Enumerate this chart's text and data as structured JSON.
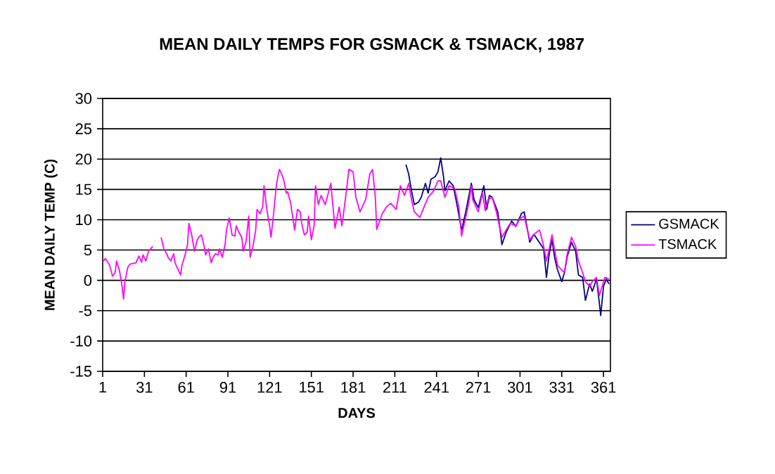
{
  "chart_data": {
    "type": "line",
    "title": "MEAN DAILY TEMPS FOR GSMACK & TSMACK, 1987",
    "xlabel": "DAYS",
    "ylabel": "MEAN DAILY TEMP (C)",
    "xlim": [
      1,
      366
    ],
    "xticks": [
      1,
      31,
      61,
      91,
      121,
      151,
      181,
      211,
      241,
      271,
      301,
      331,
      361
    ],
    "ylim": [
      -15,
      30
    ],
    "yticks": [
      -15,
      -10,
      -5,
      0,
      5,
      10,
      15,
      20,
      25,
      30
    ],
    "grid": "y",
    "legend": "right",
    "marker": "none",
    "line_style": "solid",
    "series": [
      {
        "name": "GSMACK",
        "color": "#000080",
        "x": [
          219,
          221,
          223,
          225,
          228,
          230,
          233,
          235,
          237,
          240,
          242,
          244,
          246,
          247,
          250,
          253,
          256,
          259,
          262,
          266,
          268,
          271,
          275,
          277,
          279,
          281,
          285,
          288,
          291,
          295,
          298,
          302,
          304,
          308,
          311,
          318,
          320,
          322,
          324,
          326,
          328,
          331,
          333,
          335,
          338,
          341,
          343,
          346,
          348,
          351,
          353,
          356,
          358,
          359,
          361,
          363,
          365
        ],
        "values": [
          19.1,
          17.5,
          14.8,
          12.5,
          12.9,
          13.7,
          16.0,
          14.4,
          16.7,
          17.1,
          17.9,
          20.2,
          17.1,
          14.8,
          16.4,
          15.6,
          12.1,
          8.3,
          11.3,
          16.0,
          13.3,
          12.0,
          15.6,
          11.7,
          14.0,
          13.7,
          11.3,
          5.9,
          7.9,
          9.8,
          8.9,
          11.0,
          11.3,
          6.3,
          7.6,
          5.2,
          0.5,
          4.4,
          6.7,
          3.6,
          1.7,
          -0.2,
          1.3,
          4.0,
          6.3,
          4.8,
          0.9,
          0.5,
          -3.3,
          -0.6,
          -1.8,
          0.2,
          -3.7,
          -5.8,
          -1.0,
          0.2,
          -0.6
        ]
      },
      {
        "name": "TSMACK",
        "color": "#ff00ff",
        "x": [
          1,
          3,
          6,
          8,
          10,
          11,
          13,
          15,
          16,
          17,
          19,
          20,
          21,
          25,
          27,
          29,
          30,
          32,
          34,
          37,
          40,
          43,
          45,
          47,
          48,
          50,
          52,
          53,
          55,
          57,
          58,
          60,
          62,
          63,
          65,
          67,
          69,
          70,
          72,
          74,
          75,
          77,
          79,
          80,
          82,
          84,
          85,
          87,
          89,
          90,
          92,
          94,
          96,
          97,
          99,
          101,
          102,
          104,
          106,
          107,
          109,
          111,
          112,
          114,
          116,
          117,
          119,
          121,
          122,
          124,
          126,
          128,
          129,
          131,
          133,
          134,
          136,
          138,
          139,
          141,
          143,
          144,
          146,
          148,
          149,
          151,
          153,
          154,
          156,
          158,
          161,
          165,
          168,
          171,
          173,
          176,
          178,
          181,
          183,
          186,
          190,
          193,
          195,
          197,
          198,
          202,
          205,
          208,
          212,
          215,
          218,
          221,
          223,
          225,
          229,
          232,
          235,
          239,
          242,
          244,
          247,
          250,
          254,
          257,
          259,
          261,
          264,
          266,
          267,
          271,
          274,
          276,
          278,
          281,
          284,
          288,
          291,
          294,
          298,
          301,
          304,
          308,
          311,
          315,
          316,
          318,
          320,
          322,
          324,
          326,
          328,
          331,
          333,
          335,
          338,
          341,
          343,
          346,
          348,
          351,
          353,
          356,
          358,
          360,
          362,
          365
        ],
        "values": [
          3.0,
          3.6,
          2.5,
          0.7,
          1.3,
          3.2,
          1.7,
          -1.0,
          -3.1,
          -0.2,
          2.1,
          2.5,
          2.7,
          2.9,
          4.0,
          3.0,
          4.2,
          3.2,
          4.8,
          5.6,
          null,
          7.1,
          5.2,
          4.4,
          3.8,
          3.2,
          4.4,
          2.9,
          1.9,
          0.9,
          2.5,
          4.0,
          5.9,
          9.4,
          7.5,
          4.8,
          6.7,
          7.1,
          7.5,
          5.6,
          4.2,
          5.2,
          2.9,
          3.6,
          4.4,
          4.2,
          5.2,
          3.8,
          5.9,
          8.3,
          10.3,
          7.5,
          7.3,
          9.0,
          7.9,
          7.1,
          4.8,
          6.3,
          10.6,
          3.8,
          5.6,
          8.3,
          11.7,
          11.0,
          12.1,
          15.6,
          11.7,
          9.0,
          7.1,
          11.3,
          16.0,
          18.3,
          17.9,
          16.7,
          14.4,
          14.6,
          12.9,
          9.8,
          8.3,
          11.7,
          11.3,
          9.4,
          7.5,
          7.9,
          10.6,
          6.7,
          9.0,
          15.6,
          12.5,
          14.0,
          12.5,
          16.0,
          8.6,
          12.1,
          9.0,
          14.4,
          18.3,
          17.9,
          13.7,
          11.3,
          13.3,
          17.5,
          18.3,
          13.7,
          8.4,
          11.0,
          12.1,
          12.7,
          11.7,
          15.6,
          14.0,
          16.0,
          13.3,
          11.3,
          10.4,
          12.1,
          13.7,
          14.8,
          16.4,
          16.4,
          13.7,
          15.6,
          15.2,
          12.1,
          7.3,
          9.4,
          12.5,
          15.6,
          13.3,
          11.3,
          14.4,
          11.5,
          13.3,
          13.7,
          11.3,
          7.1,
          8.3,
          9.4,
          9.0,
          10.2,
          10.6,
          6.7,
          7.6,
          8.3,
          7.5,
          5.6,
          3.2,
          5.2,
          7.5,
          4.8,
          2.5,
          1.7,
          1.3,
          4.4,
          7.1,
          5.6,
          3.2,
          1.3,
          -0.2,
          -1.0,
          -0.2,
          0.5,
          -2.5,
          -1.0,
          0.5,
          0.2
        ]
      }
    ]
  }
}
